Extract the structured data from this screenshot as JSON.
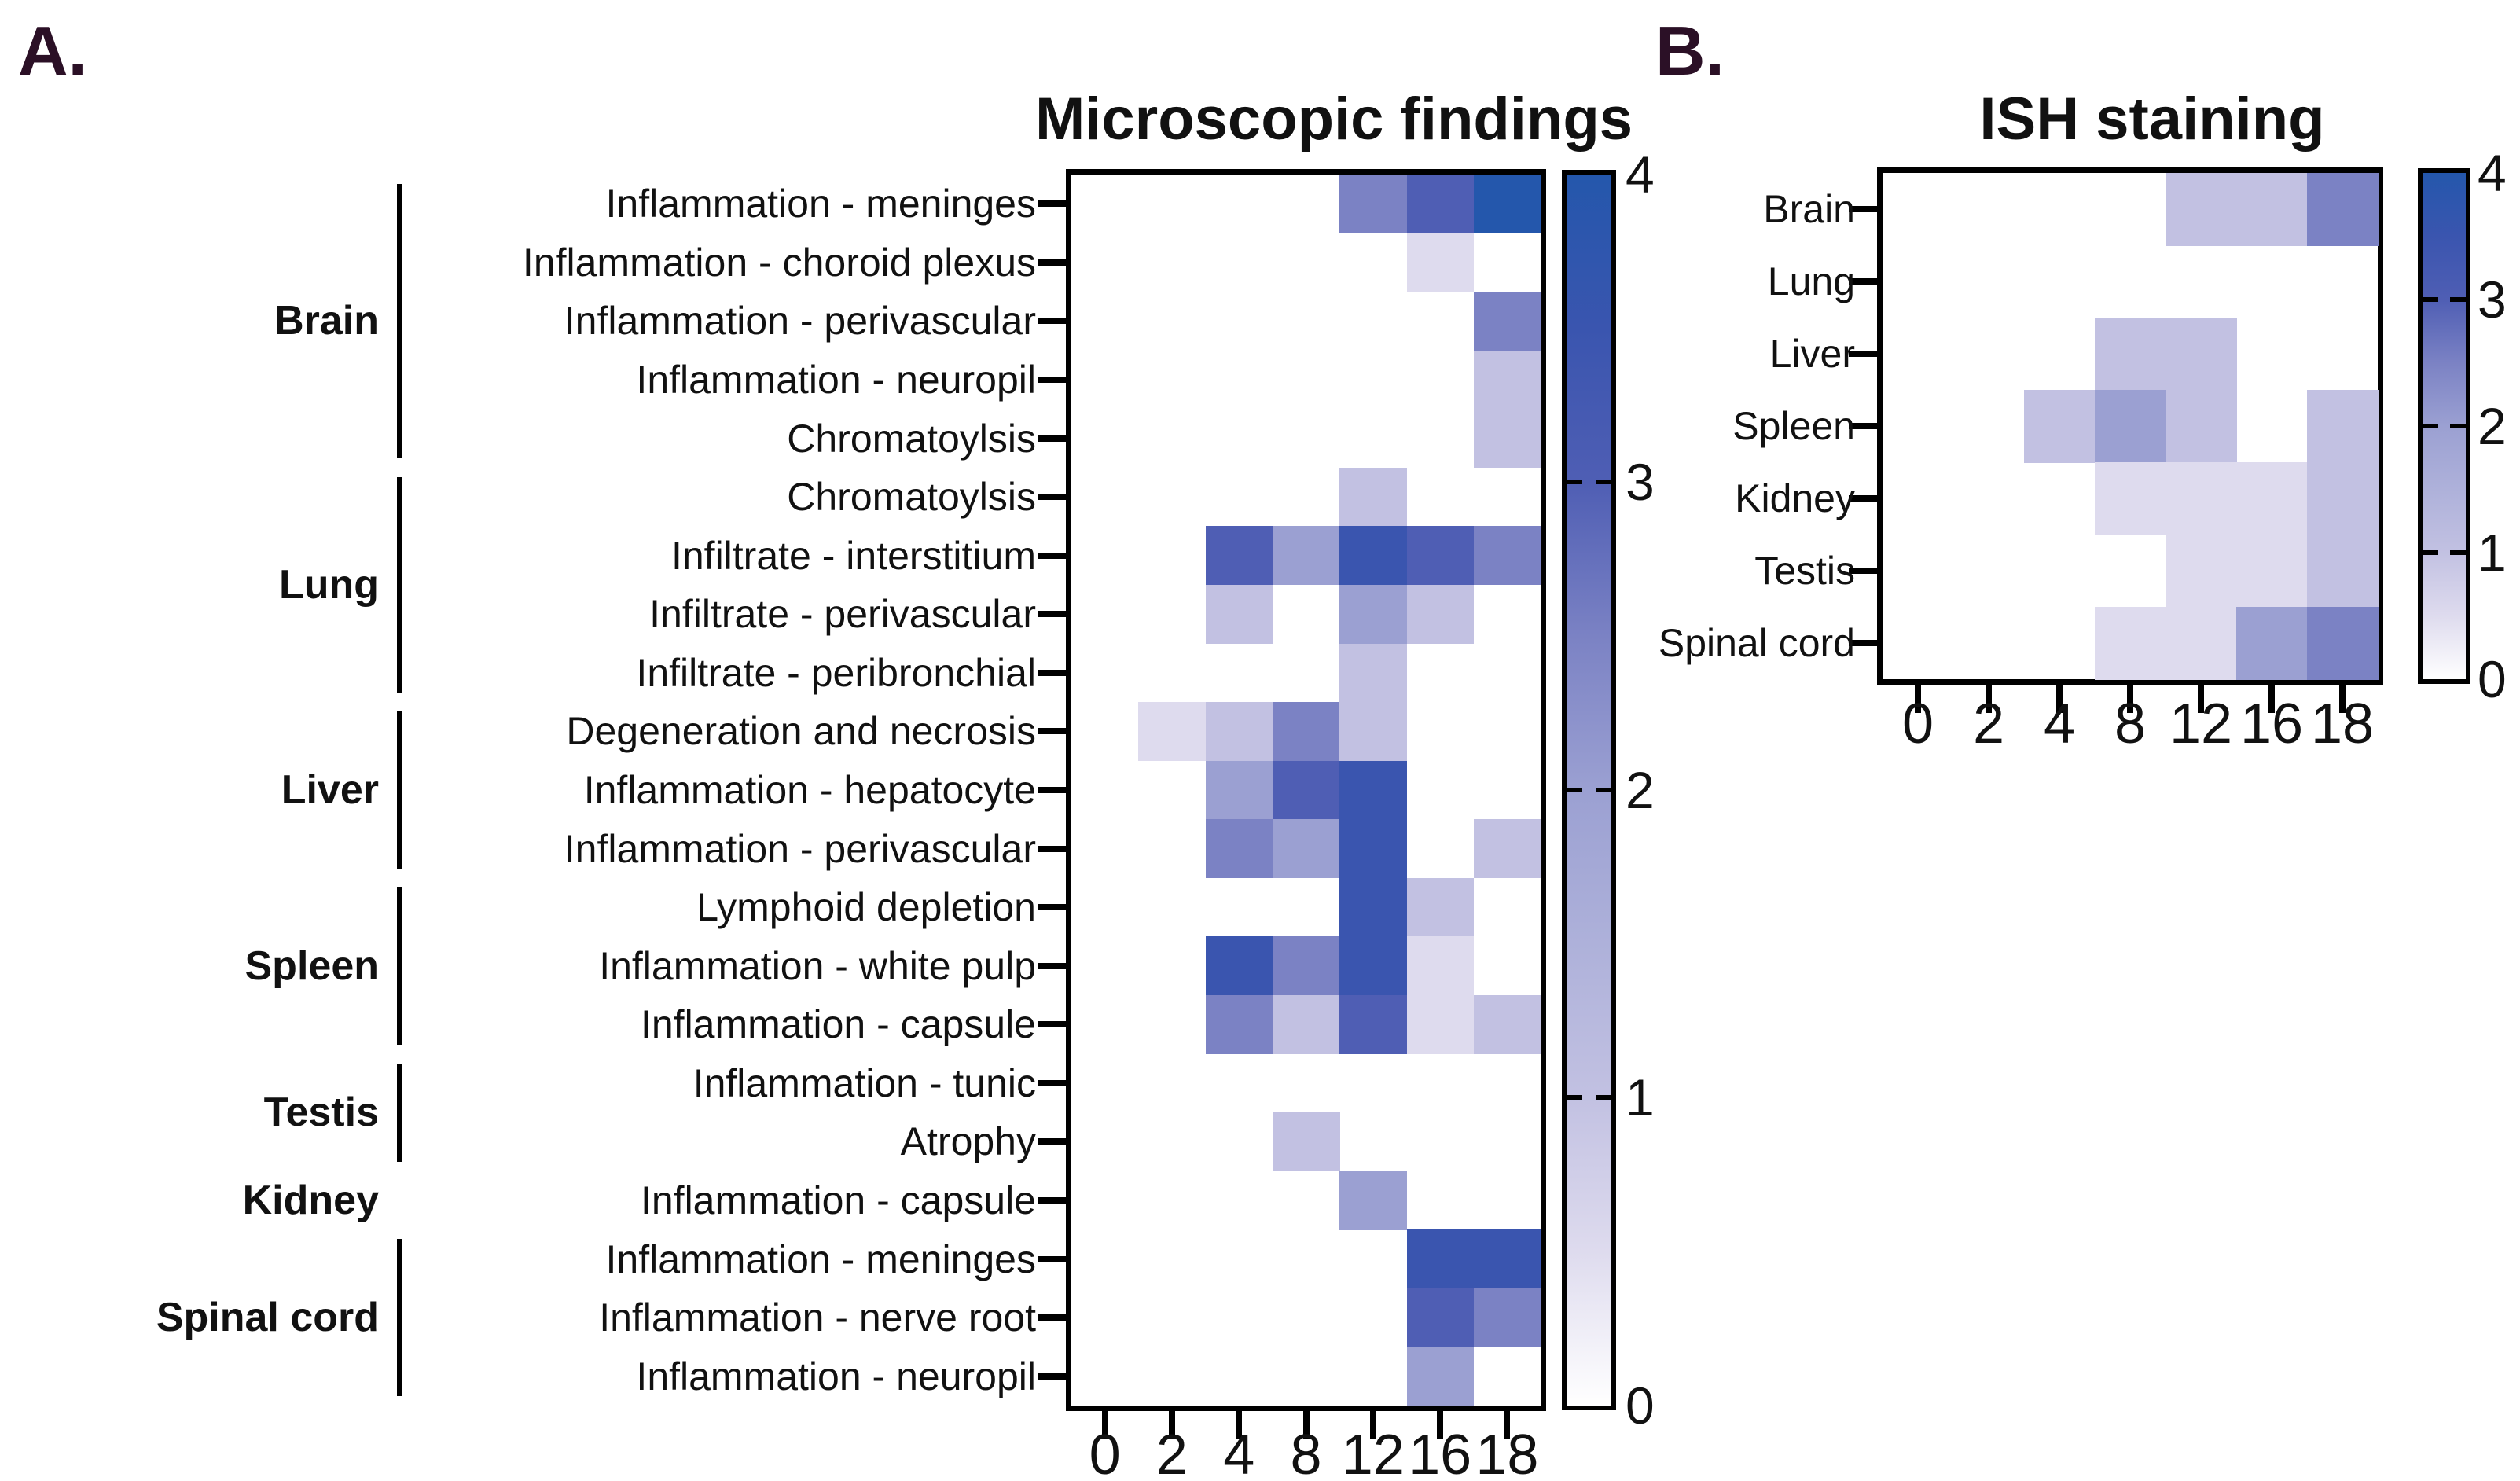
{
  "colors": {
    "background": "#ffffff",
    "panel_letter": "#2b1026",
    "axis": "#000000",
    "colormap_anchors": [
      {
        "v": 0,
        "c": "#ffffff"
      },
      {
        "v": 0.5,
        "c": "#dedbee"
      },
      {
        "v": 1,
        "c": "#c2c1e2"
      },
      {
        "v": 1.5,
        "c": "#aeb1da"
      },
      {
        "v": 2,
        "c": "#9ba0d2"
      },
      {
        "v": 2.5,
        "c": "#7b82c4"
      },
      {
        "v": 3,
        "c": "#4f5eb4"
      },
      {
        "v": 3.5,
        "c": "#3a55af"
      },
      {
        "v": 4,
        "c": "#2457ac"
      }
    ]
  },
  "chart_data": [
    {
      "type": "heatmap",
      "panel_label": "A.",
      "title": "Microscopic findings",
      "x_tick_labels": [
        "0",
        "2",
        "4",
        "8",
        "12",
        "16",
        "18"
      ],
      "value_range": [
        0,
        4
      ],
      "colorbar_tick_labels": [
        "4",
        "3",
        "2",
        "1",
        "0"
      ],
      "organ_groups": [
        {
          "name": "Brain",
          "row_start": 0,
          "row_end": 4,
          "bracket": true
        },
        {
          "name": "Lung",
          "row_start": 5,
          "row_end": 8,
          "bracket": true
        },
        {
          "name": "Liver",
          "row_start": 9,
          "row_end": 11,
          "bracket": true
        },
        {
          "name": "Spleen",
          "row_start": 12,
          "row_end": 14,
          "bracket": true
        },
        {
          "name": "Testis",
          "row_start": 15,
          "row_end": 16,
          "bracket": true
        },
        {
          "name": "Kidney",
          "row_start": 17,
          "row_end": 17,
          "bracket": false
        },
        {
          "name": "Spinal cord",
          "row_start": 18,
          "row_end": 20,
          "bracket": true
        }
      ],
      "rows": [
        {
          "label": "Inflammation - meninges",
          "values": [
            0,
            0,
            0,
            0,
            2.5,
            3,
            4
          ]
        },
        {
          "label": "Inflammation - choroid plexus",
          "values": [
            0,
            0,
            0,
            0,
            0,
            0.5,
            0
          ]
        },
        {
          "label": "Inflammation - perivascular",
          "values": [
            0,
            0,
            0,
            0,
            0,
            0,
            2.5
          ]
        },
        {
          "label": "Inflammation - neuropil",
          "values": [
            0,
            0,
            0,
            0,
            0,
            0,
            1
          ]
        },
        {
          "label": "Chromatoylsis",
          "values": [
            0,
            0,
            0,
            0,
            0,
            0,
            1
          ]
        },
        {
          "label": "Chromatoylsis",
          "values": [
            0,
            0,
            0,
            0,
            1,
            0,
            0
          ]
        },
        {
          "label": "Infiltrate - interstitium",
          "values": [
            0,
            0,
            3,
            2,
            3.5,
            3,
            2.5
          ]
        },
        {
          "label": "Infiltrate - perivascular",
          "values": [
            0,
            0,
            1,
            0,
            2,
            1,
            0
          ]
        },
        {
          "label": "Infiltrate - peribronchial",
          "values": [
            0,
            0,
            0,
            0,
            1,
            0,
            0
          ]
        },
        {
          "label": "Degeneration and necrosis",
          "values": [
            0,
            0.5,
            1,
            2.5,
            1,
            0,
            0
          ]
        },
        {
          "label": "Inflammation - hepatocyte",
          "values": [
            0,
            0,
            2,
            3,
            3.5,
            0,
            0
          ]
        },
        {
          "label": "Inflammation - perivascular",
          "values": [
            0,
            0,
            2.5,
            2,
            3.5,
            0,
            1
          ]
        },
        {
          "label": "Lymphoid depletion",
          "values": [
            0,
            0,
            0,
            0,
            3.5,
            1,
            0
          ]
        },
        {
          "label": "Inflammation - white pulp",
          "values": [
            0,
            0,
            3.5,
            2.5,
            3.5,
            0.5,
            0
          ]
        },
        {
          "label": "Inflammation - capsule",
          "values": [
            0,
            0,
            2.5,
            1,
            3,
            0.5,
            1
          ]
        },
        {
          "label": "Inflammation - tunic",
          "values": [
            0,
            0,
            0,
            0,
            0,
            0,
            0
          ]
        },
        {
          "label": "Atrophy",
          "values": [
            0,
            0,
            0,
            1,
            0,
            0,
            0
          ]
        },
        {
          "label": "Inflammation - capsule",
          "values": [
            0,
            0,
            0,
            0,
            2,
            0,
            0
          ]
        },
        {
          "label": "Inflammation - meninges",
          "values": [
            0,
            0,
            0,
            0,
            0,
            3.5,
            3.5
          ]
        },
        {
          "label": "Inflammation - nerve root",
          "values": [
            0,
            0,
            0,
            0,
            0,
            3,
            2.5
          ]
        },
        {
          "label": "Inflammation - neuropil",
          "values": [
            0,
            0,
            0,
            0,
            0,
            2,
            0
          ]
        }
      ]
    },
    {
      "type": "heatmap",
      "panel_label": "B.",
      "title": "ISH staining",
      "x_tick_labels": [
        "0",
        "2",
        "4",
        "8",
        "12",
        "16",
        "18"
      ],
      "value_range": [
        0,
        4
      ],
      "colorbar_tick_labels": [
        "4",
        "3",
        "2",
        "1",
        "0"
      ],
      "rows": [
        {
          "label": "Brain",
          "values": [
            0,
            0,
            0,
            0,
            1,
            1,
            2.5
          ]
        },
        {
          "label": "Lung",
          "values": [
            0,
            0,
            0,
            0,
            0,
            0,
            0
          ]
        },
        {
          "label": "Liver",
          "values": [
            0,
            0,
            0,
            1,
            1,
            0,
            0
          ]
        },
        {
          "label": "Spleen",
          "values": [
            0,
            0,
            1,
            2,
            1,
            0,
            1
          ]
        },
        {
          "label": "Kidney",
          "values": [
            0,
            0,
            0,
            0.5,
            0.5,
            0.5,
            1
          ]
        },
        {
          "label": "Testis",
          "values": [
            0,
            0,
            0,
            0,
            0.5,
            0.5,
            1
          ]
        },
        {
          "label": "Spinal cord",
          "values": [
            0,
            0,
            0,
            0.5,
            0.5,
            2,
            2.5
          ]
        }
      ]
    }
  ]
}
